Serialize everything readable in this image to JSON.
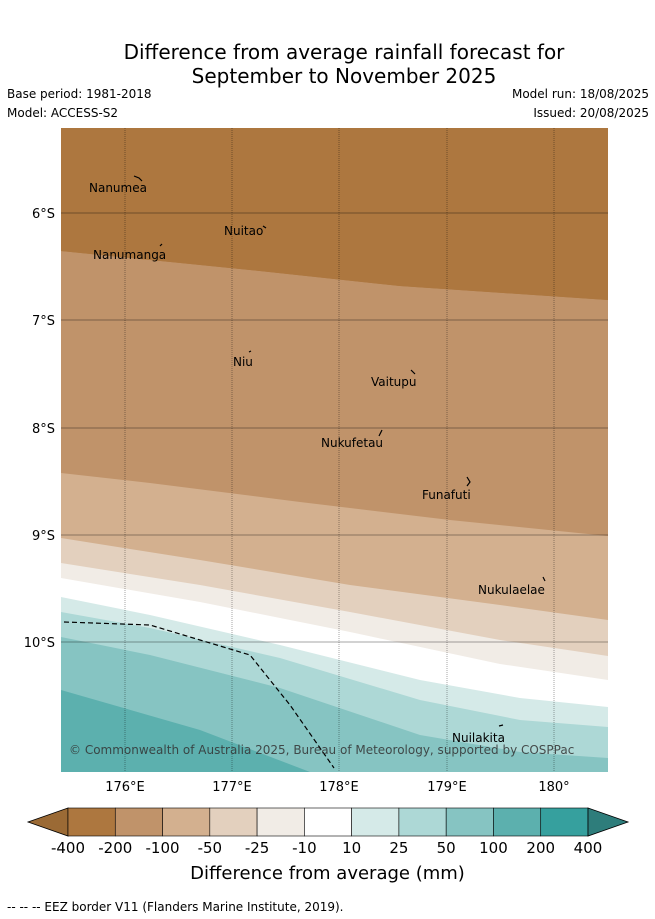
{
  "title_line1": "Difference from average rainfall forecast for",
  "title_line2": "September to November 2025",
  "base_period": "Base period: 1981-2018",
  "model": "Model: ACCESS-S2",
  "model_run": "Model run: 18/08/2025",
  "issued": "Issued: 20/08/2025",
  "copyright": "© Commonwealth of Australia 2025, Bureau of Meteorology, supported by COSPPac",
  "lat_labels": [
    "6°S",
    "7°S",
    "8°S",
    "9°S",
    "10°S"
  ],
  "lon_labels": [
    "176°E",
    "177°E",
    "178°E",
    "179°E",
    "180°"
  ],
  "islands": [
    {
      "name": "Nanumea"
    },
    {
      "name": "Nuitao"
    },
    {
      "name": "Nanumanga"
    },
    {
      "name": "Niu"
    },
    {
      "name": "Vaitupu"
    },
    {
      "name": "Nukufetau"
    },
    {
      "name": "Funafuti"
    },
    {
      "name": "Nukulaelae"
    },
    {
      "name": "Nuilakita"
    }
  ],
  "colorbar": {
    "ticks": [
      "-400",
      "-200",
      "-100",
      "-50",
      "-25",
      "-10",
      "10",
      "25",
      "50",
      "100",
      "200",
      "400"
    ],
    "colors": [
      "#9b6a35",
      "#ad773f",
      "#c0936a",
      "#d3b08f",
      "#e3d0be",
      "#f1ece6",
      "#ffffff",
      "#d5eae8",
      "#add8d6",
      "#86c4c2",
      "#5cb0ae",
      "#36a09e",
      "#2e7d7b"
    ],
    "label": "Difference from average (mm)"
  },
  "eez_note": "-- -- -- EEZ border V11 (Flanders Marine Institute, 2019)."
}
